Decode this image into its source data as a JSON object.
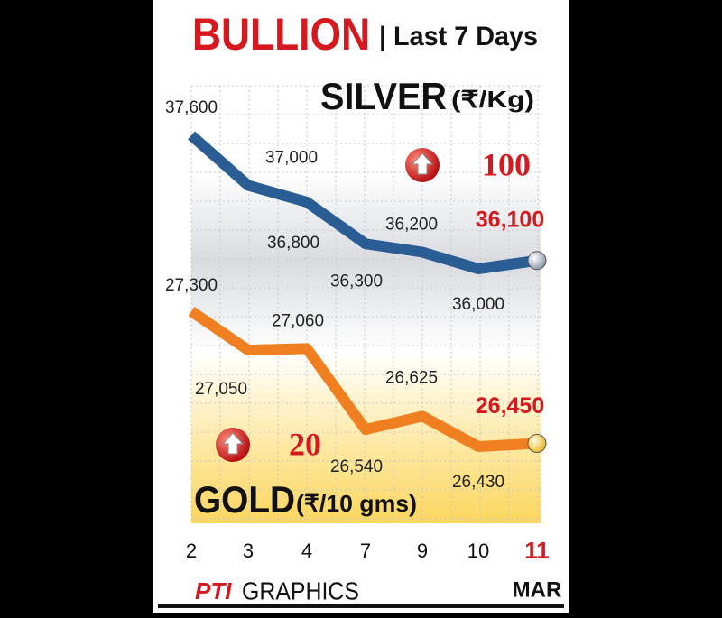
{
  "chart_data": {
    "type": "line",
    "title": "BULLION",
    "subtitle": "| Last 7 Days",
    "categories": [
      "2",
      "3",
      "4",
      "7",
      "9",
      "10",
      "11"
    ],
    "x_unit": "MAR",
    "grid": true,
    "series": [
      {
        "name": "SILVER",
        "unit": "(₹/Kg)",
        "color": "#2a5d93",
        "change": 100,
        "values": [
          37600,
          37000,
          36800,
          36300,
          36200,
          36000,
          36100
        ],
        "value_labels": [
          "37,600",
          "37,000",
          "36,800",
          "36,300",
          "36,200",
          "36,000",
          "36,100"
        ]
      },
      {
        "name": "GOLD",
        "unit": "(₹/10 gms)",
        "color": "#f07f22",
        "change": 20,
        "values": [
          27300,
          27050,
          27060,
          26540,
          26625,
          26430,
          26450
        ],
        "value_labels": [
          "27,300",
          "27,050",
          "27,060",
          "26,540",
          "26,625",
          "26,430",
          "26,450"
        ]
      }
    ],
    "credit_logo": "PTI",
    "credit": "GRAPHICS"
  }
}
